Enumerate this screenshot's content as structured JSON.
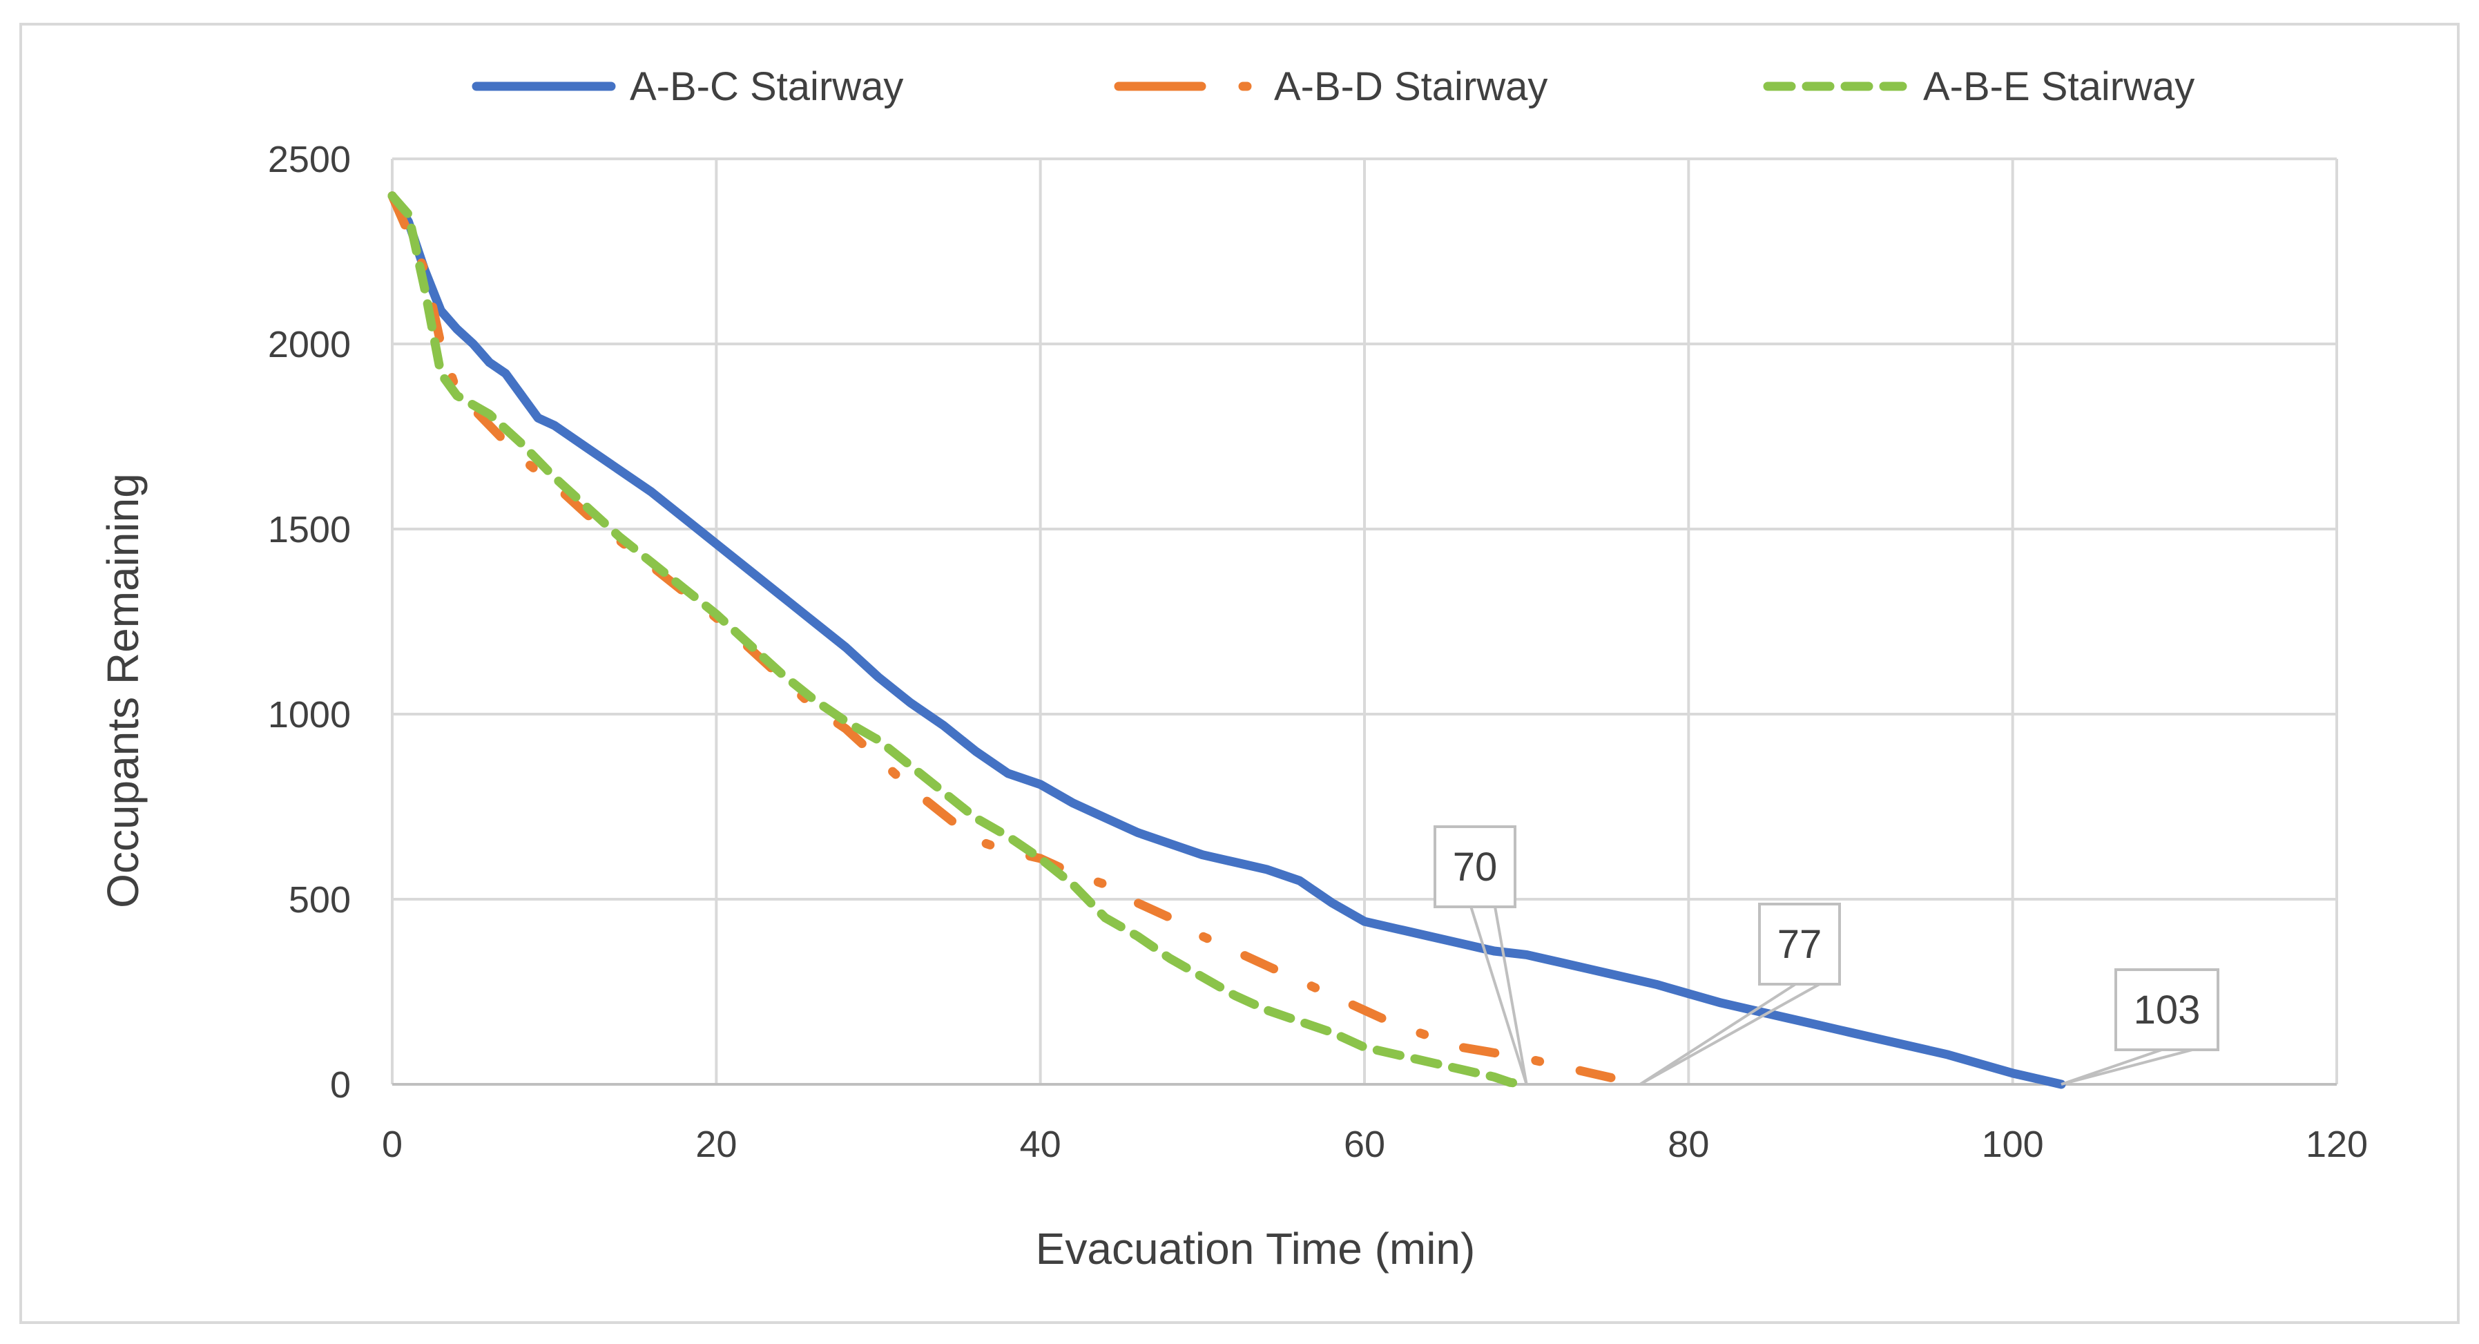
{
  "chart_data": {
    "type": "line",
    "title": "",
    "xlabel": "Evacuation Time (min)",
    "ylabel": "Occupants Remaining",
    "xlim": [
      0,
      120
    ],
    "ylim": [
      0,
      2500
    ],
    "xticks": [
      0,
      20,
      40,
      60,
      80,
      100,
      120
    ],
    "yticks": [
      0,
      500,
      1000,
      1500,
      2000,
      2500
    ],
    "xtick_labels": [
      "0",
      "20",
      "40",
      "60",
      "80",
      "100",
      "120"
    ],
    "ytick_labels": [
      "0",
      "500",
      "1000",
      "1500",
      "2000",
      "2500"
    ],
    "grid": true,
    "legend_position": "top-center",
    "series": [
      {
        "name": "A-B-C Stairway",
        "color": "#4472C4",
        "style": "solid",
        "x": [
          0,
          1,
          2,
          3,
          4,
          5,
          6,
          7,
          8,
          9,
          10,
          12,
          14,
          16,
          18,
          20,
          22,
          24,
          26,
          28,
          30,
          32,
          34,
          36,
          38,
          40,
          42,
          44,
          46,
          48,
          50,
          52,
          54,
          56,
          58,
          60,
          62,
          64,
          66,
          68,
          70,
          72,
          74,
          76,
          78,
          80,
          82,
          84,
          86,
          88,
          90,
          92,
          94,
          96,
          98,
          100,
          102,
          103
        ],
        "values": [
          2400,
          2330,
          2200,
          2090,
          2040,
          2000,
          1950,
          1920,
          1860,
          1800,
          1780,
          1720,
          1660,
          1600,
          1530,
          1460,
          1390,
          1320,
          1250,
          1180,
          1100,
          1030,
          970,
          900,
          840,
          810,
          760,
          720,
          680,
          650,
          620,
          600,
          580,
          550,
          490,
          440,
          420,
          400,
          380,
          360,
          350,
          330,
          310,
          290,
          270,
          245,
          220,
          200,
          180,
          160,
          140,
          120,
          100,
          80,
          55,
          30,
          10,
          0
        ]
      },
      {
        "name": "A-B-D Stairway",
        "color": "#ED7D31",
        "style": "dash-dot",
        "x": [
          0,
          2,
          3,
          4,
          6,
          8,
          10,
          12,
          14,
          16,
          18,
          20,
          22,
          24,
          26,
          28,
          30,
          32,
          34,
          36,
          38,
          40,
          42,
          44,
          46,
          48,
          50,
          52,
          54,
          56,
          58,
          60,
          62,
          64,
          66,
          68,
          70,
          72,
          74,
          76,
          77
        ],
        "values": [
          2400,
          2200,
          2000,
          1870,
          1780,
          1690,
          1620,
          1540,
          1470,
          1400,
          1330,
          1260,
          1180,
          1100,
          1020,
          960,
          880,
          800,
          730,
          660,
          630,
          610,
          570,
          540,
          490,
          450,
          400,
          360,
          320,
          280,
          240,
          200,
          160,
          130,
          100,
          85,
          70,
          50,
          30,
          10,
          0
        ]
      },
      {
        "name": "A-B-E Stairway",
        "color": "#8BC34A",
        "style": "dashed",
        "x": [
          0,
          1,
          2,
          3,
          4,
          6,
          8,
          10,
          12,
          14,
          16,
          18,
          20,
          22,
          24,
          26,
          28,
          30,
          32,
          34,
          36,
          38,
          40,
          42,
          44,
          46,
          48,
          50,
          52,
          54,
          56,
          58,
          60,
          62,
          64,
          66,
          68,
          69,
          70
        ],
        "values": [
          2400,
          2350,
          2150,
          1920,
          1860,
          1810,
          1730,
          1640,
          1560,
          1480,
          1410,
          1340,
          1270,
          1190,
          1110,
          1040,
          980,
          930,
          860,
          790,
          720,
          670,
          610,
          540,
          450,
          400,
          340,
          290,
          240,
          200,
          170,
          140,
          100,
          80,
          60,
          40,
          20,
          5,
          0
        ]
      }
    ],
    "annotations": [
      {
        "label": "70",
        "x": 70,
        "y": 0
      },
      {
        "label": "77",
        "x": 77,
        "y": 0
      },
      {
        "label": "103",
        "x": 103,
        "y": 0
      }
    ]
  }
}
